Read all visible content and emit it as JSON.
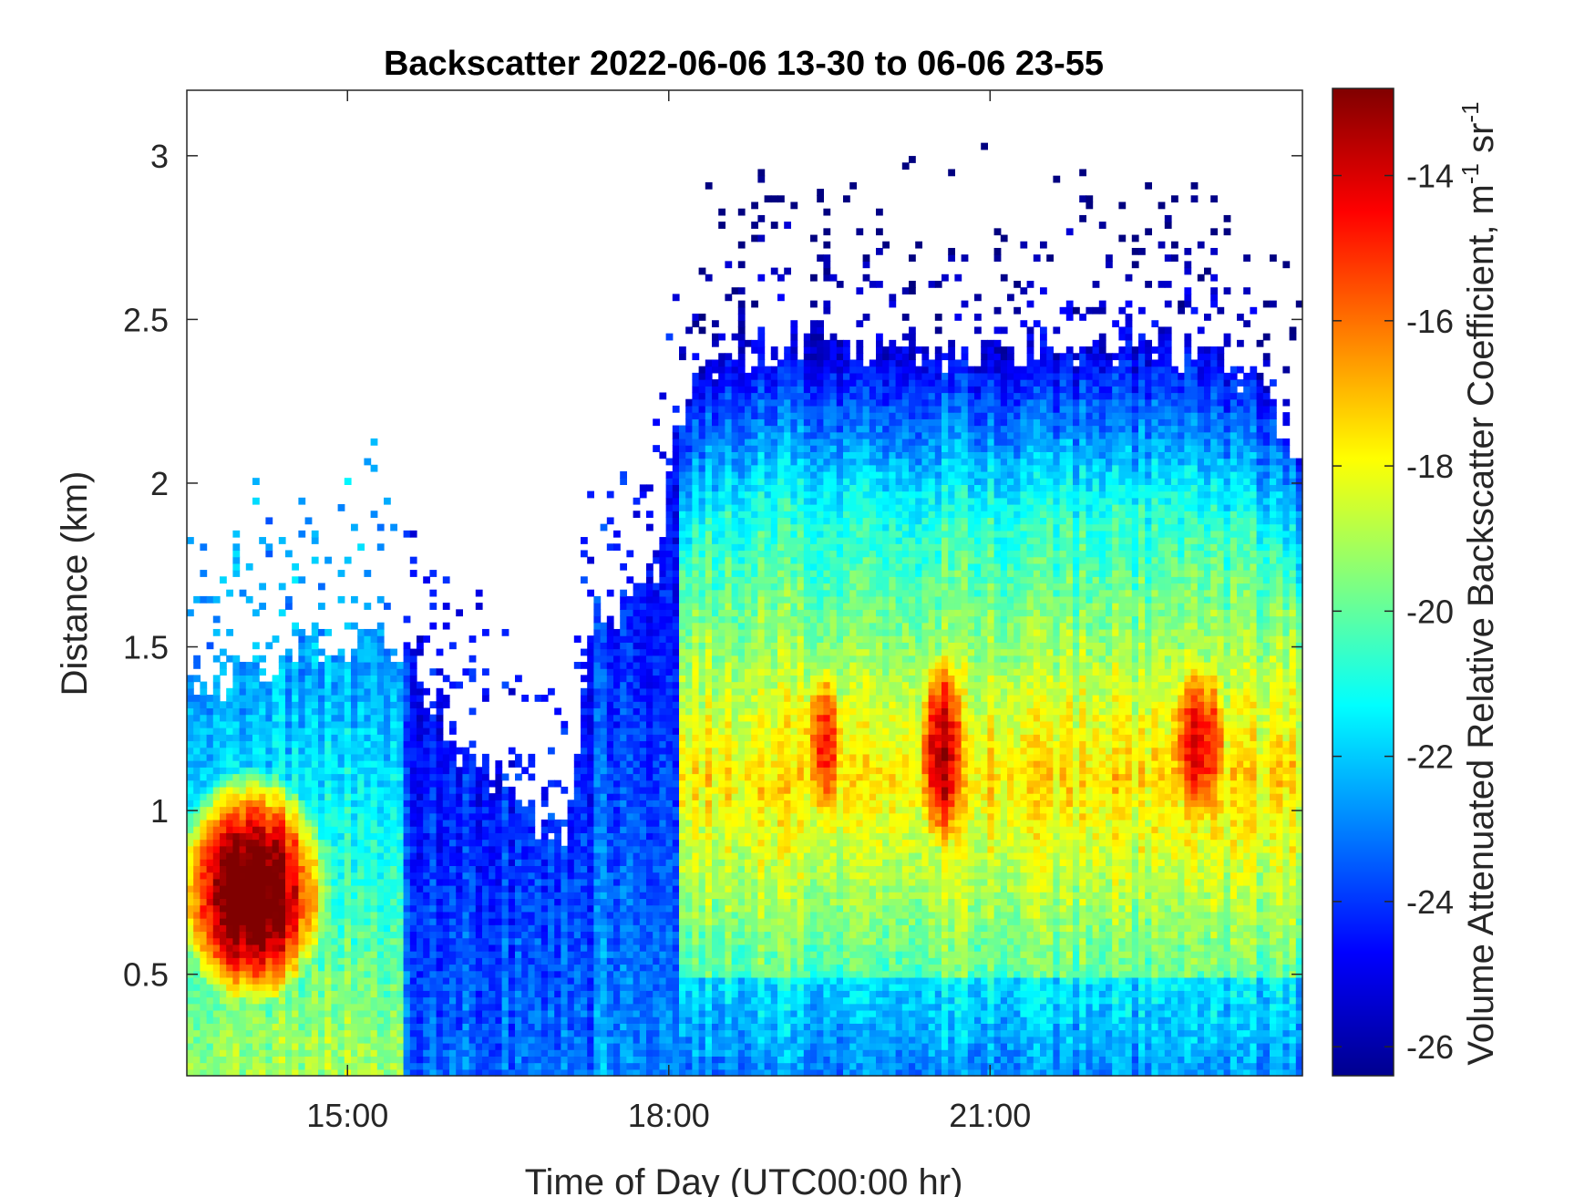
{
  "chart_data": {
    "type": "heatmap",
    "title": "Backscatter 2022-06-06 13-30 to 06-06 23-55",
    "xlabel": "Time of Day (UTC00:00 hr)",
    "ylabel": "Distance (km)",
    "colorbar_label": "Volume Attenuated Relative Backscatter Coefficient, m",
    "colorbar_label_units": [
      {
        "base": " sr",
        "sup": "-1"
      }
    ],
    "colorbar_label_first_sup": "-1",
    "x_start": "13:30",
    "x_end": "23:55",
    "xlim_hours": [
      13.5,
      23.9167
    ],
    "ylim": [
      0.19,
      3.2
    ],
    "x_ticks": [
      {
        "value": 15,
        "label": "15:00"
      },
      {
        "value": 18,
        "label": "18:00"
      },
      {
        "value": 21,
        "label": "21:00"
      }
    ],
    "y_ticks": [
      {
        "value": 0.5,
        "label": "0.5"
      },
      {
        "value": 1,
        "label": "1"
      },
      {
        "value": 1.5,
        "label": "1.5"
      },
      {
        "value": 2,
        "label": "2"
      },
      {
        "value": 2.5,
        "label": "2.5"
      },
      {
        "value": 3,
        "label": "3"
      }
    ],
    "colorbar": {
      "colormap": "jet",
      "range": [
        -26.4,
        -12.8
      ],
      "ticks": [
        {
          "value": -14,
          "label": "-14"
        },
        {
          "value": -16,
          "label": "-16"
        },
        {
          "value": -18,
          "label": "-18"
        },
        {
          "value": -20,
          "label": "-20"
        },
        {
          "value": -22,
          "label": "-22"
        },
        {
          "value": -24,
          "label": "-24"
        },
        {
          "value": -26,
          "label": "-26"
        }
      ]
    },
    "grid": false,
    "features": [
      {
        "time_range": [
          13.5,
          14.7
        ],
        "distance_range": [
          0.45,
          1.05
        ],
        "peak_value": -13.5,
        "note": "strong red layer"
      },
      {
        "time_range": [
          19.2,
          19.7
        ],
        "distance_range": [
          0.9,
          1.5
        ],
        "peak_value": -16.5
      },
      {
        "time_range": [
          20.3,
          20.8
        ],
        "distance_range": [
          0.85,
          1.5
        ],
        "peak_value": -15.5
      },
      {
        "time_range": [
          22.6,
          23.3
        ],
        "distance_range": [
          0.9,
          1.5
        ],
        "peak_value": -16.5
      }
    ],
    "layer_top_km": [
      {
        "t": 13.5,
        "top": 1.35
      },
      {
        "t": 14.5,
        "top": 1.5
      },
      {
        "t": 15.5,
        "top": 1.5
      },
      {
        "t": 16.0,
        "top": 1.2
      },
      {
        "t": 16.5,
        "top": 1.05
      },
      {
        "t": 17.0,
        "top": 0.9
      },
      {
        "t": 17.3,
        "top": 1.6
      },
      {
        "t": 17.9,
        "top": 1.7
      },
      {
        "t": 18.1,
        "top": 2.2
      },
      {
        "t": 18.5,
        "top": 2.4
      },
      {
        "t": 19.5,
        "top": 2.45
      },
      {
        "t": 20.5,
        "top": 2.4
      },
      {
        "t": 21.5,
        "top": 2.4
      },
      {
        "t": 22.5,
        "top": 2.45
      },
      {
        "t": 23.5,
        "top": 2.3
      },
      {
        "t": 23.92,
        "top": 2.0
      }
    ]
  }
}
